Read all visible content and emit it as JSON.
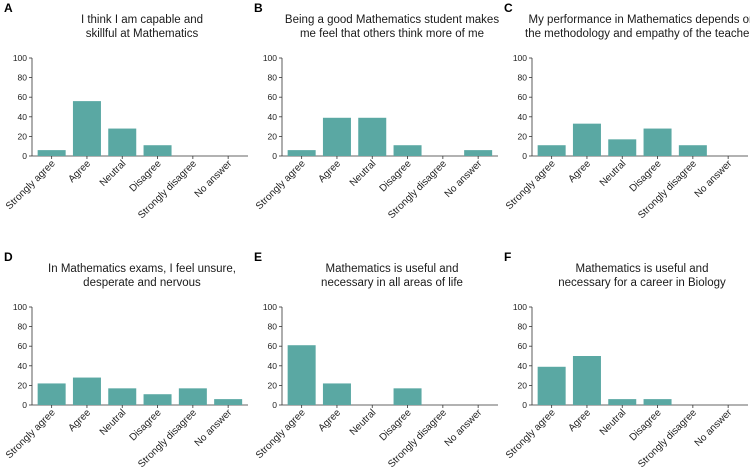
{
  "colors": {
    "bar": "#5aa8a3",
    "axis": "#333333",
    "text": "#1a1a1a"
  },
  "chart_data": [
    {
      "panel": "A",
      "type": "bar",
      "title_lines": [
        "I think I am capable and",
        "skillful at Mathematics"
      ],
      "categories": [
        "Strongly agree",
        "Agree",
        "Neutral",
        "Disagree",
        "Strongly disagree",
        "No answer"
      ],
      "values": [
        6,
        56,
        28,
        11,
        0,
        0
      ],
      "yticks": [
        "0",
        "20",
        "40",
        "60",
        "80",
        "100"
      ],
      "ylim": [
        0,
        100
      ]
    },
    {
      "panel": "B",
      "type": "bar",
      "title_lines": [
        "Being a good Mathematics student makes",
        "me feel that others think more of me"
      ],
      "categories": [
        "Strongly agree",
        "Agree",
        "Neutral",
        "Disagree",
        "Strongly disagree",
        "No answer"
      ],
      "values": [
        6,
        39,
        39,
        11,
        0,
        6
      ],
      "yticks": [
        "0",
        "20",
        "40",
        "60",
        "80",
        "100"
      ],
      "ylim": [
        0,
        100
      ]
    },
    {
      "panel": "C",
      "type": "bar",
      "title_lines": [
        "My performance in Mathematics depends on",
        "the methodology and empathy of the teachers"
      ],
      "categories": [
        "Strongly agree",
        "Agree",
        "Neutral",
        "Disagree",
        "Strongly disagree",
        "No answer"
      ],
      "values": [
        11,
        33,
        17,
        28,
        11,
        0
      ],
      "yticks": [
        "0",
        "20",
        "40",
        "60",
        "80",
        "100"
      ],
      "ylim": [
        0,
        100
      ]
    },
    {
      "panel": "D",
      "type": "bar",
      "title_lines": [
        "In Mathematics exams, I feel unsure,",
        "desperate and nervous"
      ],
      "categories": [
        "Strongly agree",
        "Agree",
        "Neutral",
        "Disagree",
        "Strongly disagree",
        "No answer"
      ],
      "values": [
        22,
        28,
        17,
        11,
        17,
        6
      ],
      "yticks": [
        "0",
        "20",
        "40",
        "60",
        "80",
        "100"
      ],
      "ylim": [
        0,
        100
      ]
    },
    {
      "panel": "E",
      "type": "bar",
      "title_lines": [
        "Mathematics is useful and",
        "necessary in all areas of life"
      ],
      "categories": [
        "Strongly agree",
        "Agree",
        "Neutral",
        "Disagree",
        "Strongly disagree",
        "No answer"
      ],
      "values": [
        61,
        22,
        0,
        17,
        0,
        0
      ],
      "yticks": [
        "0",
        "20",
        "40",
        "60",
        "80",
        "100"
      ],
      "ylim": [
        0,
        100
      ]
    },
    {
      "panel": "F",
      "type": "bar",
      "title_lines": [
        "Mathematics is useful and",
        "necessary for a career in Biology"
      ],
      "categories": [
        "Strongly agree",
        "Agree",
        "Neutral",
        "Disagree",
        "Strongly disagree",
        "No answer"
      ],
      "values": [
        39,
        50,
        6,
        6,
        0,
        0
      ],
      "yticks": [
        "0",
        "20",
        "40",
        "60",
        "80",
        "100"
      ],
      "ylim": [
        0,
        100
      ]
    }
  ]
}
